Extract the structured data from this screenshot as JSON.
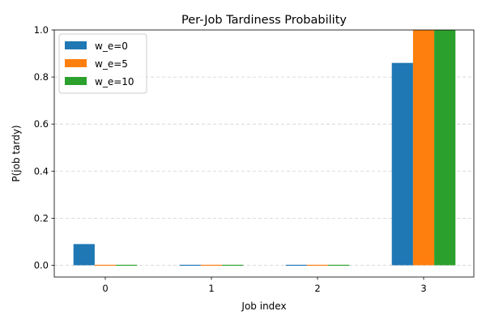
{
  "chart_data": {
    "type": "bar",
    "title": "Per-Job Tardiness Probability",
    "xlabel": "Job index",
    "ylabel": "P(job tardy)",
    "categories": [
      "0",
      "1",
      "2",
      "3"
    ],
    "ylim": [
      -0.05,
      1.0
    ],
    "yticks": [
      "0.0",
      "0.2",
      "0.4",
      "0.6",
      "0.8",
      "1.0"
    ],
    "grid": "y, dashed",
    "legend_position": "top-left",
    "series": [
      {
        "name": "w_e=0",
        "color": "#1f77b4",
        "values": [
          0.09,
          0.0,
          0.0,
          0.86
        ]
      },
      {
        "name": "w_e=5",
        "color": "#ff7f0e",
        "values": [
          0.0,
          0.0,
          0.0,
          1.0
        ]
      },
      {
        "name": "w_e=10",
        "color": "#2ca02c",
        "values": [
          0.0,
          0.0,
          0.0,
          1.0
        ]
      }
    ]
  }
}
